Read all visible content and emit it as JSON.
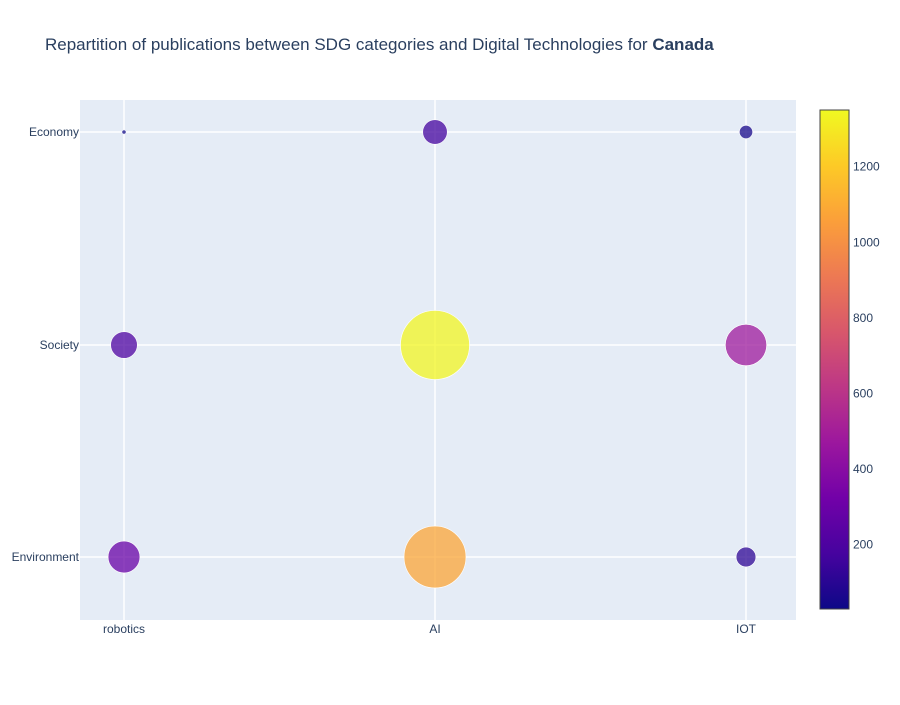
{
  "chart_data": {
    "type": "scatter",
    "title": {
      "prefix": "Repartition of publications between SDG categories and Digital Technologies for ",
      "highlight": "Canada"
    },
    "x_categories": [
      "robotics",
      "AI",
      "IOT"
    ],
    "y_categories": [
      "Environment",
      "Society",
      "Economy"
    ],
    "points": [
      {
        "x": "robotics",
        "y": "Economy",
        "value": 5
      },
      {
        "x": "AI",
        "y": "Economy",
        "value": 170
      },
      {
        "x": "IOT",
        "y": "Economy",
        "value": 50
      },
      {
        "x": "robotics",
        "y": "Society",
        "value": 200
      },
      {
        "x": "AI",
        "y": "Society",
        "value": 1340
      },
      {
        "x": "IOT",
        "y": "Society",
        "value": 480
      },
      {
        "x": "robotics",
        "y": "Environment",
        "value": 285
      },
      {
        "x": "AI",
        "y": "Environment",
        "value": 1080
      },
      {
        "x": "IOT",
        "y": "Environment",
        "value": 110
      }
    ],
    "colorbar": {
      "min": 30,
      "max": 1350,
      "ticks": [
        200,
        400,
        600,
        800,
        1000,
        1200
      ],
      "colorscale": [
        "#0d0887",
        "#46039f",
        "#7201a8",
        "#9c179e",
        "#bd3786",
        "#d8576b",
        "#ed7953",
        "#fb9f3a",
        "#fdca26",
        "#f0f921"
      ]
    },
    "grid": true,
    "legend": "none"
  }
}
